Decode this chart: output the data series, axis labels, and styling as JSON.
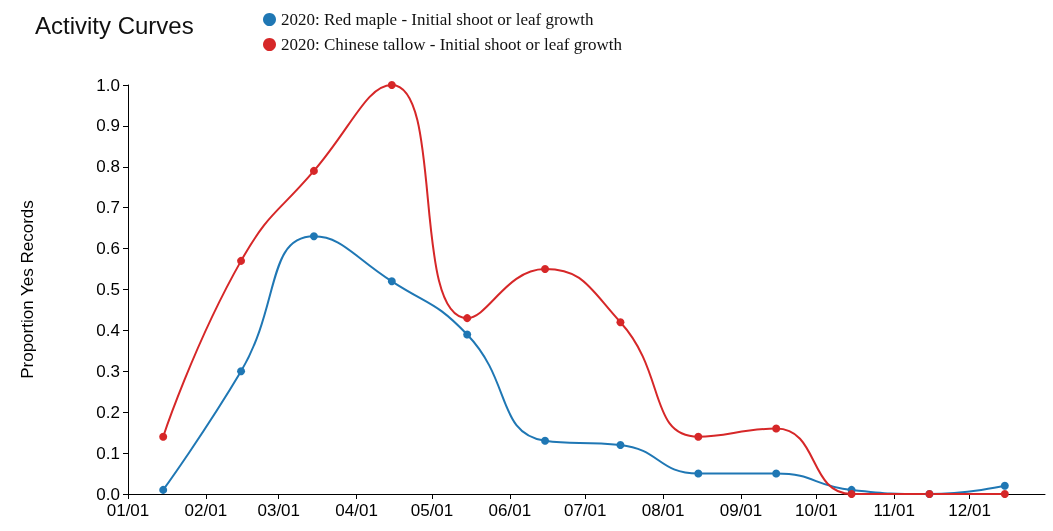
{
  "chart_data": {
    "type": "line",
    "title": "Activity Curves",
    "ylabel": "Proportion Yes Records",
    "x": [
      "--01-15",
      "--02-15",
      "--03-15",
      "--04-15",
      "--05-15",
      "--06-15",
      "--07-15",
      "--08-15",
      "--09-15",
      "--10-15",
      "--11-15",
      "--12-15"
    ],
    "series": [
      {
        "name": "2020: Red maple - Initial shoot or leaf growth",
        "color": "#1f77b4",
        "values": [
          0.01,
          0.3,
          0.63,
          0.52,
          0.39,
          0.13,
          0.12,
          0.05,
          0.05,
          0.01,
          0.0,
          0.02
        ]
      },
      {
        "name": "2020: Chinese tallow - Initial shoot or leaf growth",
        "color": "#d62728",
        "values": [
          0.14,
          0.57,
          0.79,
          1.0,
          0.43,
          0.55,
          0.42,
          0.14,
          0.16,
          0.0,
          0.0,
          0.0
        ]
      }
    ],
    "xlim": [
      "--01-01",
      "--12-31"
    ],
    "xticks": [
      {
        "value": "--01-01",
        "label": "01/01"
      },
      {
        "value": "--02-01",
        "label": "02/01"
      },
      {
        "value": "--03-01",
        "label": "03/01"
      },
      {
        "value": "--04-01",
        "label": "04/01"
      },
      {
        "value": "--05-01",
        "label": "05/01"
      },
      {
        "value": "--06-01",
        "label": "06/01"
      },
      {
        "value": "--07-01",
        "label": "07/01"
      },
      {
        "value": "--08-01",
        "label": "08/01"
      },
      {
        "value": "--09-01",
        "label": "09/01"
      },
      {
        "value": "--10-01",
        "label": "10/01"
      },
      {
        "value": "--11-01",
        "label": "11/01"
      },
      {
        "value": "--12-01",
        "label": "12/01"
      }
    ],
    "ylim": [
      0,
      1
    ],
    "yticks": [
      {
        "value": 0,
        "label": "0.0"
      },
      {
        "value": 0.1,
        "label": "0.1"
      },
      {
        "value": 0.2,
        "label": "0.2"
      },
      {
        "value": 0.3,
        "label": "0.3"
      },
      {
        "value": 0.4,
        "label": "0.4"
      },
      {
        "value": 0.5,
        "label": "0.5"
      },
      {
        "value": 0.6,
        "label": "0.6"
      },
      {
        "value": 0.7,
        "label": "0.7"
      },
      {
        "value": 0.8,
        "label": "0.8"
      },
      {
        "value": 0.9,
        "label": "0.9"
      },
      {
        "value": 1,
        "label": "1.0"
      }
    ],
    "grid": false,
    "legend": "top",
    "marker": "circle",
    "line_style": "solid"
  }
}
